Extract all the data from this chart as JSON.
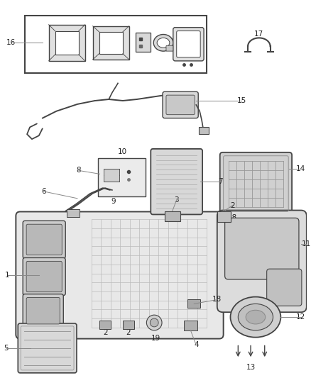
{
  "background_color": "#ffffff",
  "line_color": "#444444",
  "text_color": "#222222",
  "fig_width": 4.38,
  "fig_height": 5.33,
  "dpi": 100
}
